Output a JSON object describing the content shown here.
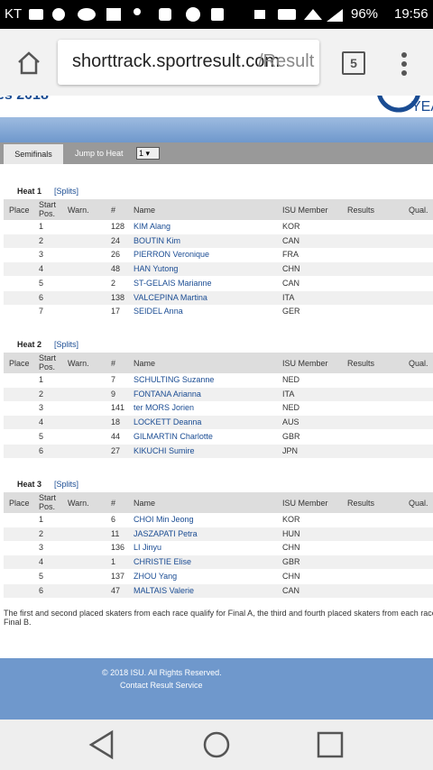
{
  "status_bar": {
    "carrier": "KT",
    "battery": "96%",
    "time": "19:56"
  },
  "browser": {
    "url_host": "shorttrack.sportresult.com",
    "url_path": "/Result",
    "tab_count": "5"
  },
  "header": {
    "title_fragment": "es 2018",
    "logo_fragment": "YEA"
  },
  "tabs": {
    "active": "Semifinals",
    "jump_label": "Jump to Heat",
    "jump_value": "1"
  },
  "columns": [
    "Place",
    "Start Pos.",
    "Warn.",
    "#",
    "Name",
    "ISU Member",
    "Results",
    "Qual."
  ],
  "heats": [
    {
      "title": "Heat 1",
      "splits": "[Splits]",
      "rows": [
        [
          "1",
          "128",
          "KIM Alang",
          "KOR"
        ],
        [
          "2",
          "24",
          "BOUTIN Kim",
          "CAN"
        ],
        [
          "3",
          "26",
          "PIERRON Veronique",
          "FRA"
        ],
        [
          "4",
          "48",
          "HAN Yutong",
          "CHN"
        ],
        [
          "5",
          "2",
          "ST-GELAIS Marianne",
          "CAN"
        ],
        [
          "6",
          "138",
          "VALCEPINA Martina",
          "ITA"
        ],
        [
          "7",
          "17",
          "SEIDEL Anna",
          "GER"
        ]
      ]
    },
    {
      "title": "Heat 2",
      "splits": "[Splits]",
      "rows": [
        [
          "1",
          "7",
          "SCHULTING Suzanne",
          "NED"
        ],
        [
          "2",
          "9",
          "FONTANA Arianna",
          "ITA"
        ],
        [
          "3",
          "141",
          "ter MORS Jorien",
          "NED"
        ],
        [
          "4",
          "18",
          "LOCKETT Deanna",
          "AUS"
        ],
        [
          "5",
          "44",
          "GILMARTIN Charlotte",
          "GBR"
        ],
        [
          "6",
          "27",
          "KIKUCHI Sumire",
          "JPN"
        ]
      ]
    },
    {
      "title": "Heat 3",
      "splits": "[Splits]",
      "rows": [
        [
          "1",
          "6",
          "CHOI Min Jeong",
          "KOR"
        ],
        [
          "2",
          "11",
          "JASZAPATI Petra",
          "HUN"
        ],
        [
          "3",
          "136",
          "LI Jinyu",
          "CHN"
        ],
        [
          "4",
          "1",
          "CHRISTIE Elise",
          "GBR"
        ],
        [
          "5",
          "137",
          "ZHOU Yang",
          "CHN"
        ],
        [
          "6",
          "47",
          "MALTAIS Valerie",
          "CAN"
        ]
      ]
    }
  ],
  "note": [
    "The first and second placed skaters from each race qualify for Final A, the third and fourth placed skaters from each race qua",
    "Final B."
  ],
  "footer": {
    "copyright": "© 2018 ISU. All Rights Reserved.",
    "contact": "Contact Result Service"
  }
}
